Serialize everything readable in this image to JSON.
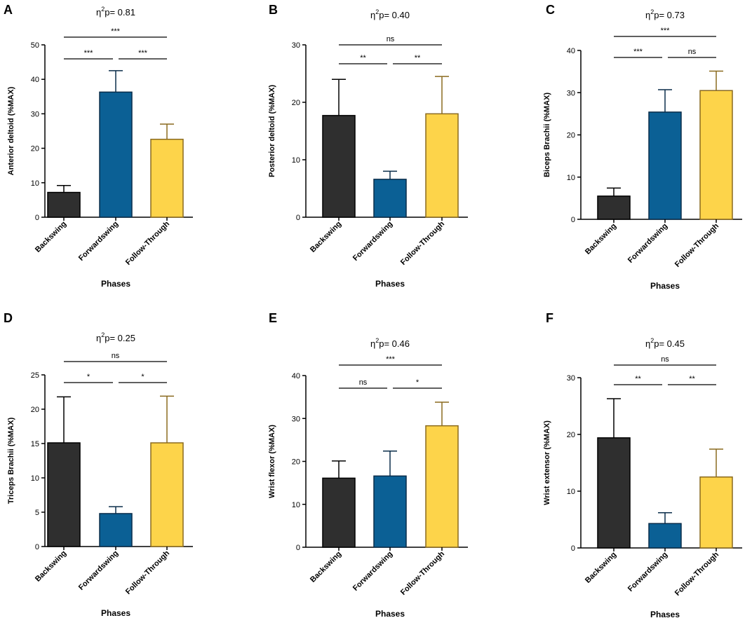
{
  "colors": {
    "Backswing": "#2f2f2f",
    "Forwardswing": "#0b6095",
    "Follow-Through": "#fdd44a",
    "Backswing_edge": "#000000",
    "Forwardswing_edge": "#0a2d4a",
    "Follow-Through_edge": "#8a6a1f"
  },
  "chart_data": [
    {
      "type": "bar",
      "panel": "A",
      "title": "η2p= 0.81",
      "eta_prefix": "η",
      "eta_sup": "2",
      "eta_rest": "p= 0.81",
      "ylabel": "Anterior deltoid (%MAX)",
      "xlabel": "Phases",
      "ylim": [
        0,
        50
      ],
      "yticks": [
        0,
        10,
        20,
        30,
        40,
        50
      ],
      "categories": [
        "Backswing",
        "Forwardswing",
        "Follow-Through"
      ],
      "values": [
        7.2,
        36.3,
        22.6
      ],
      "errors": [
        2.0,
        6.2,
        4.4
      ],
      "significance": [
        {
          "from": 0,
          "to": 1,
          "label": "***"
        },
        {
          "from": 1,
          "to": 2,
          "label": "***"
        },
        {
          "from": 0,
          "to": 2,
          "label": "***"
        }
      ]
    },
    {
      "type": "bar",
      "panel": "B",
      "title": "η2p= 0.40",
      "eta_prefix": "η",
      "eta_sup": "2",
      "eta_rest": "p= 0.40",
      "ylabel": "Posterior deltoid (%MAX)",
      "xlabel": "Phases",
      "ylim": [
        0,
        30
      ],
      "yticks": [
        0,
        10,
        20,
        30
      ],
      "categories": [
        "Backswing",
        "Forwardswing",
        "Follow-Through"
      ],
      "values": [
        17.7,
        6.6,
        18.0
      ],
      "errors": [
        6.3,
        1.4,
        6.5
      ],
      "significance": [
        {
          "from": 0,
          "to": 1,
          "label": "**"
        },
        {
          "from": 1,
          "to": 2,
          "label": "**"
        },
        {
          "from": 0,
          "to": 2,
          "label": "ns"
        }
      ]
    },
    {
      "type": "bar",
      "panel": "C",
      "title": "η2p= 0.73",
      "eta_prefix": "η",
      "eta_sup": "2",
      "eta_rest": "p= 0.73",
      "ylabel": "Biceps Brachii (%MAX)",
      "xlabel": "Phases",
      "ylim": [
        0,
        40
      ],
      "yticks": [
        0,
        10,
        20,
        30,
        40
      ],
      "categories": [
        "Backswing",
        "Forwardswing",
        "Follow-Through"
      ],
      "values": [
        5.5,
        25.4,
        30.5
      ],
      "errors": [
        1.9,
        5.3,
        4.6
      ],
      "significance": [
        {
          "from": 0,
          "to": 1,
          "label": "***"
        },
        {
          "from": 1,
          "to": 2,
          "label": "ns"
        },
        {
          "from": 0,
          "to": 2,
          "label": "***"
        }
      ]
    },
    {
      "type": "bar",
      "panel": "D",
      "title": "η2p= 0.25",
      "eta_prefix": "η",
      "eta_sup": "2",
      "eta_rest": "p= 0.25",
      "ylabel": "Triceps Brachii (%MAX)",
      "xlabel": "Phases",
      "ylim": [
        0,
        25
      ],
      "yticks": [
        0,
        5,
        10,
        15,
        20,
        25
      ],
      "categories": [
        "Backswing",
        "Forwardswing",
        "Follow-Through"
      ],
      "values": [
        15.1,
        4.8,
        15.1
      ],
      "errors": [
        6.7,
        1.0,
        6.8
      ],
      "significance": [
        {
          "from": 0,
          "to": 1,
          "label": "*"
        },
        {
          "from": 1,
          "to": 2,
          "label": "*"
        },
        {
          "from": 0,
          "to": 2,
          "label": "ns"
        }
      ]
    },
    {
      "type": "bar",
      "panel": "E",
      "title": "η2p= 0.46",
      "eta_prefix": "η",
      "eta_sup": "2",
      "eta_rest": "p= 0.46",
      "ylabel": "Wrist flexor (%MAX)",
      "xlabel": "Phases",
      "ylim": [
        0,
        40
      ],
      "yticks": [
        0,
        10,
        20,
        30,
        40
      ],
      "categories": [
        "Backswing",
        "Forwardswing",
        "Follow-Through"
      ],
      "values": [
        16.1,
        16.6,
        28.3
      ],
      "errors": [
        4.0,
        5.8,
        5.5
      ],
      "significance": [
        {
          "from": 0,
          "to": 1,
          "label": "ns"
        },
        {
          "from": 1,
          "to": 2,
          "label": "*"
        },
        {
          "from": 0,
          "to": 2,
          "label": "***"
        }
      ]
    },
    {
      "type": "bar",
      "panel": "F",
      "title": "η2p= 0.45",
      "eta_prefix": "η",
      "eta_sup": "2",
      "eta_rest": "p= 0.45",
      "ylabel": "Wrist extensor (%MAX)",
      "xlabel": "Phases",
      "ylim": [
        0,
        30
      ],
      "yticks": [
        0,
        10,
        20,
        30
      ],
      "categories": [
        "Backswing",
        "Forwardswing",
        "Follow-Through"
      ],
      "values": [
        19.4,
        4.3,
        12.5
      ],
      "errors": [
        6.9,
        1.9,
        4.9
      ],
      "significance": [
        {
          "from": 0,
          "to": 1,
          "label": "**"
        },
        {
          "from": 1,
          "to": 2,
          "label": "**"
        },
        {
          "from": 0,
          "to": 2,
          "label": "ns"
        }
      ]
    }
  ]
}
